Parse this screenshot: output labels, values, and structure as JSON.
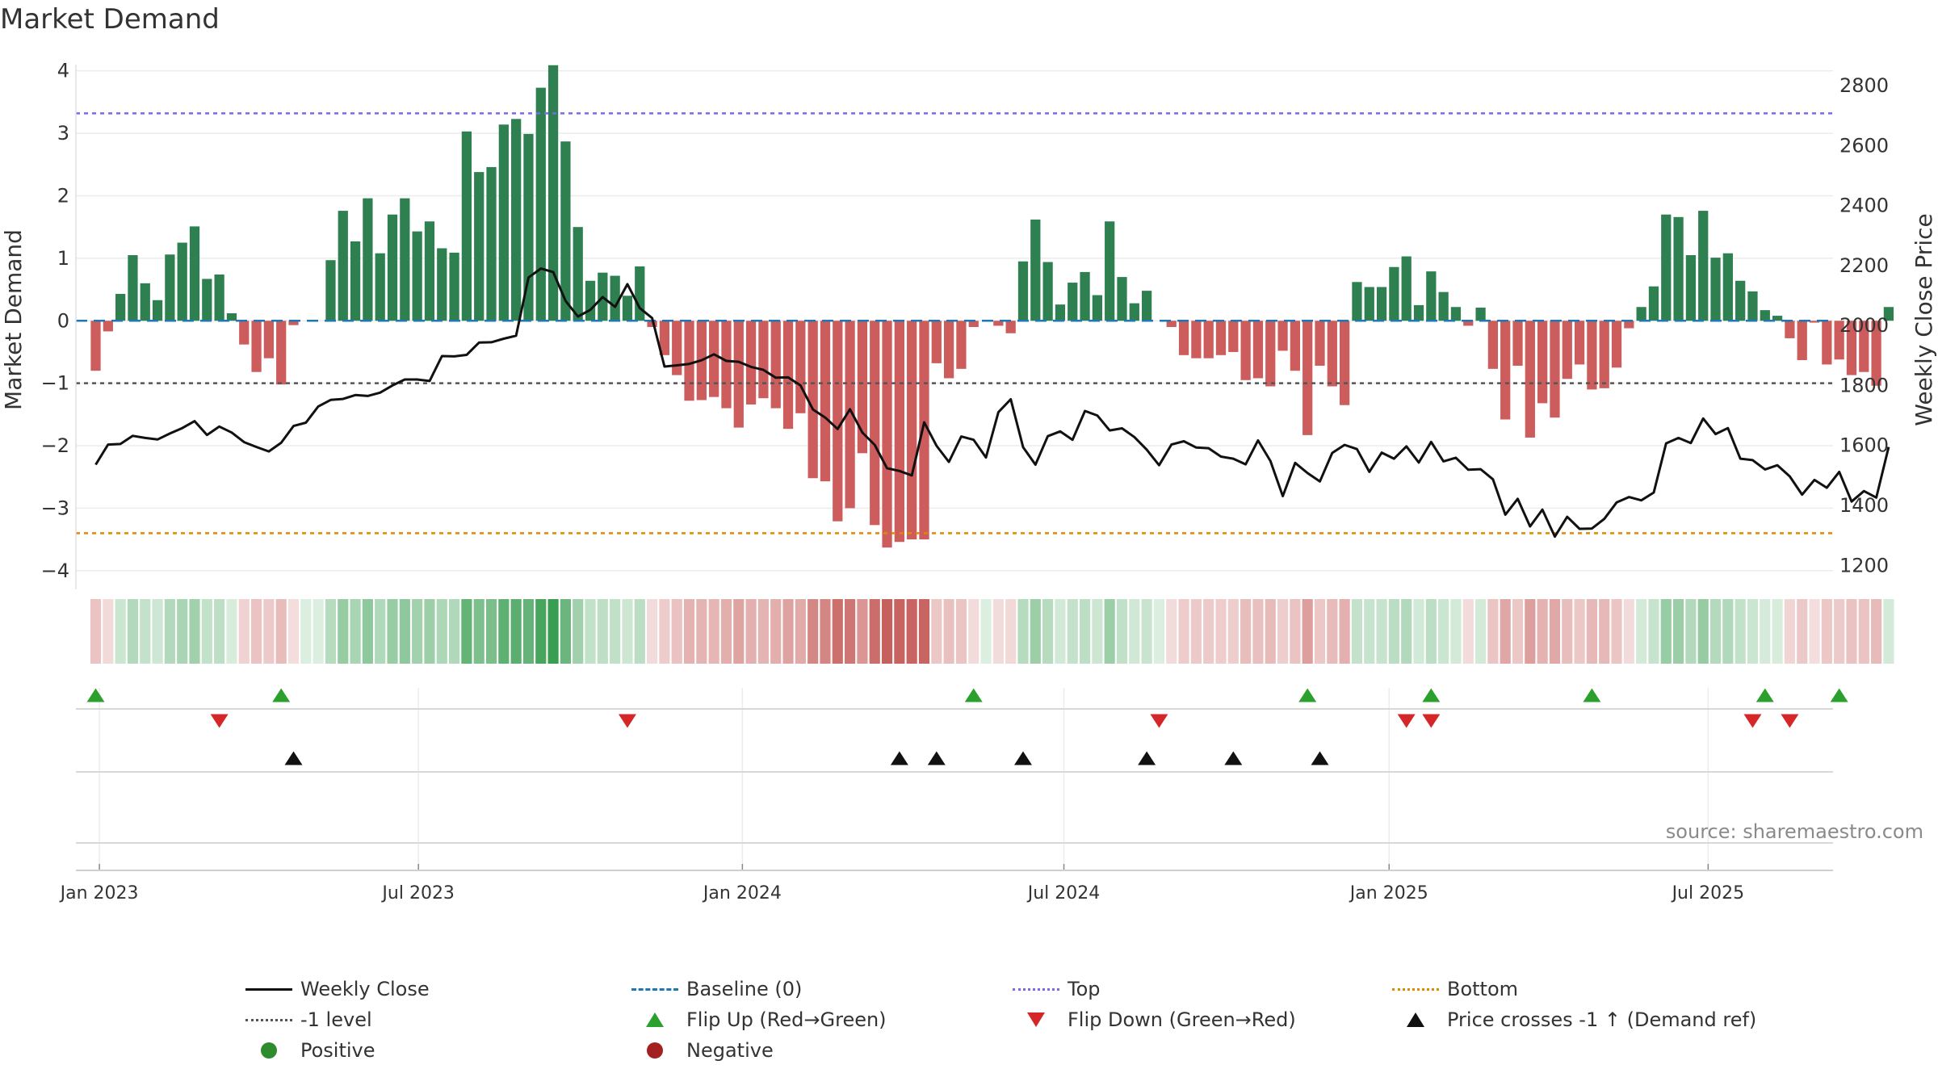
{
  "title": "Market Demand",
  "source_text": "source: sharemaestro.com",
  "colors": {
    "positive_bar": "#2e8051",
    "negative_bar": "#cd5c5c",
    "price_line": "#111111",
    "baseline": "#1f77b4",
    "top_line": "#7b68ee",
    "bottom_line": "#e08a00",
    "minus_one_line": "#555555",
    "flip_up": "#2ca02c",
    "flip_down": "#d62728",
    "cross_marker": "#111111",
    "strip_positive": "#3a9e52",
    "strip_negative": "#c0504d"
  },
  "legend": [
    {
      "symbol": "line-solid",
      "label": "Weekly Close"
    },
    {
      "symbol": "line-dash-blue",
      "label": "Baseline (0)"
    },
    {
      "symbol": "line-dot-purple",
      "label": "Top"
    },
    {
      "symbol": "line-dot-orange",
      "label": "Bottom"
    },
    {
      "symbol": "line-dot-gray",
      "label": "-1 level"
    },
    {
      "symbol": "tri-up-green",
      "label": "Flip Up (Red→Green)"
    },
    {
      "symbol": "tri-down-red",
      "label": "Flip Down (Green→Red)"
    },
    {
      "symbol": "tri-up-black",
      "label": "Price crosses -1 ↑ (Demand ref)"
    },
    {
      "symbol": "dot-green",
      "label": "Positive"
    },
    {
      "symbol": "dot-red",
      "label": "Negative"
    }
  ],
  "chart_data": {
    "type": "bar",
    "title": "Market Demand",
    "ylabel": "Market Demand",
    "y2label": "Weekly Close Price",
    "ylim": [
      -4.3,
      4.1
    ],
    "y2lim": [
      1120,
      2870
    ],
    "yticks": [
      "−4",
      "−3",
      "−2",
      "−1",
      "0",
      "1",
      "2",
      "3",
      "4"
    ],
    "y2ticks": [
      "1200",
      "1400",
      "1600",
      "1800",
      "2000",
      "2200",
      "2400",
      "2600",
      "2800"
    ],
    "x_start_week": -1.6,
    "x_end_week": 140.5,
    "xticks": [
      {
        "label": "Jan 2023",
        "week": 0.3
      },
      {
        "label": "Jul 2023",
        "week": 26.1
      },
      {
        "label": "Jan 2024",
        "week": 52.3
      },
      {
        "label": "Jul 2024",
        "week": 78.3
      },
      {
        "label": "Jan 2025",
        "week": 104.6
      },
      {
        "label": "Jul 2025",
        "week": 130.4
      }
    ],
    "reference_lines": {
      "top": 3.32,
      "bottom": -3.4,
      "minus_one": -1.0,
      "baseline": 0
    },
    "demand": [
      -0.8,
      -0.17,
      0.43,
      1.05,
      0.6,
      0.33,
      1.06,
      1.25,
      1.51,
      0.67,
      0.74,
      0.12,
      -0.38,
      -0.82,
      -0.6,
      -1.02,
      -0.07,
      0.0,
      0.0,
      0.97,
      1.76,
      1.27,
      1.96,
      1.08,
      1.7,
      1.96,
      1.43,
      1.59,
      1.16,
      1.09,
      3.03,
      2.38,
      2.46,
      3.14,
      3.23,
      2.99,
      3.73,
      4.09,
      2.87,
      1.5,
      0.64,
      0.77,
      0.72,
      0.4,
      0.87,
      -0.1,
      -0.55,
      -0.87,
      -1.28,
      -1.27,
      -1.22,
      -1.4,
      -1.71,
      -1.34,
      -1.24,
      -1.4,
      -1.73,
      -1.48,
      -2.52,
      -2.57,
      -3.21,
      -3.0,
      -2.12,
      -3.27,
      -3.63,
      -3.54,
      -3.5,
      -3.5,
      -0.68,
      -0.92,
      -0.77,
      -0.1,
      0.0,
      -0.08,
      -0.2,
      0.95,
      1.62,
      0.94,
      0.26,
      0.61,
      0.78,
      0.41,
      1.59,
      0.7,
      0.28,
      0.48,
      0.0,
      -0.1,
      -0.55,
      -0.6,
      -0.6,
      -0.55,
      -0.5,
      -0.95,
      -0.92,
      -1.05,
      -0.48,
      -0.8,
      -1.83,
      -0.72,
      -1.05,
      -1.35,
      0.62,
      0.54,
      0.54,
      0.86,
      1.03,
      0.25,
      0.79,
      0.46,
      0.22,
      -0.08,
      0.21,
      -0.77,
      -1.58,
      -0.72,
      -1.87,
      -1.32,
      -1.55,
      -0.93,
      -0.7,
      -1.1,
      -1.08,
      -0.75,
      -0.12,
      0.22,
      0.55,
      1.7,
      1.66,
      1.05,
      1.76,
      1.01,
      1.08,
      0.64,
      0.47,
      0.17,
      0.08,
      -0.28,
      -0.63,
      -0.03,
      -0.7,
      -0.62,
      -0.87,
      -0.82,
      -1.04,
      0.22
    ],
    "price": [
      1536,
      1603,
      1605,
      1632,
      1625,
      1620,
      1640,
      1658,
      1681,
      1635,
      1663,
      1643,
      1611,
      1595,
      1580,
      1609,
      1665,
      1676,
      1730,
      1752,
      1755,
      1768,
      1765,
      1776,
      1800,
      1820,
      1820,
      1815,
      1898,
      1897,
      1902,
      1943,
      1944,
      1956,
      1966,
      2160,
      2190,
      2178,
      2082,
      2030,
      2052,
      2095,
      2062,
      2138,
      2058,
      2025,
      1863,
      1867,
      1872,
      1884,
      1904,
      1882,
      1879,
      1862,
      1852,
      1826,
      1827,
      1800,
      1720,
      1693,
      1655,
      1721,
      1643,
      1602,
      1524,
      1515,
      1500,
      1677,
      1599,
      1545,
      1630,
      1619,
      1560,
      1711,
      1754,
      1594,
      1536,
      1631,
      1647,
      1619,
      1715,
      1700,
      1650,
      1657,
      1628,
      1586,
      1534,
      1603,
      1614,
      1593,
      1591,
      1563,
      1556,
      1537,
      1617,
      1548,
      1431,
      1542,
      1508,
      1480,
      1575,
      1602,
      1588,
      1512,
      1576,
      1556,
      1597,
      1543,
      1612,
      1547,
      1559,
      1519,
      1521,
      1487,
      1369,
      1422,
      1330,
      1386,
      1296,
      1362,
      1322,
      1323,
      1355,
      1410,
      1428,
      1417,
      1443,
      1607,
      1625,
      1608,
      1690,
      1638,
      1658,
      1556,
      1551,
      1520,
      1534,
      1497,
      1436,
      1485,
      1459,
      1512,
      1413,
      1448,
      1426,
      1595
    ]
  },
  "markers": {
    "flip_up_weeks": [
      0,
      15,
      71,
      98,
      108,
      121,
      135,
      141
    ],
    "flip_down_weeks": [
      10,
      43,
      86,
      106,
      108,
      134,
      137
    ],
    "cross_weeks": [
      16,
      65,
      68,
      75,
      85,
      92,
      99
    ]
  }
}
